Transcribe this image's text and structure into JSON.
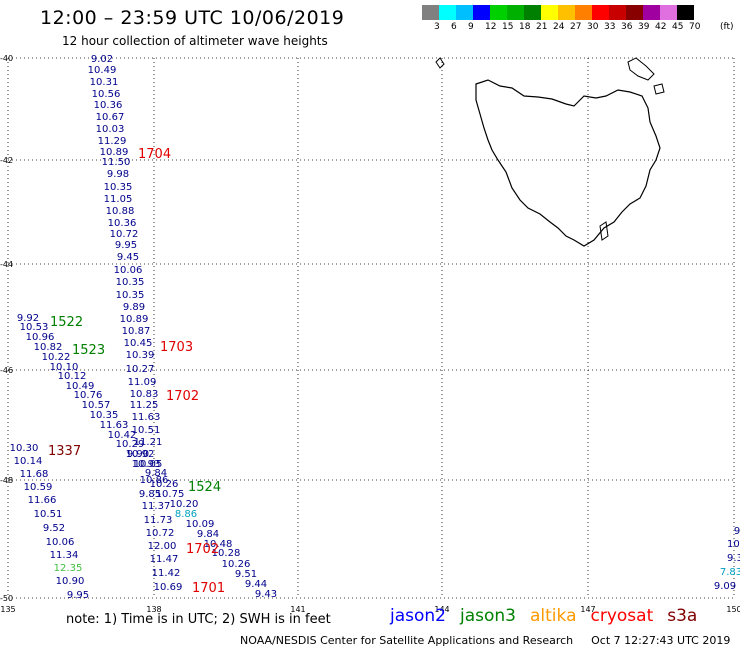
{
  "header": {
    "title": "12:00 – 23:59 UTC 10/06/2019",
    "subtitle": "12 hour collection of altimeter wave heights"
  },
  "legend": {
    "unit": "(ft)",
    "colors": [
      "#808080",
      "#00ffff",
      "#00bfff",
      "#0000ff",
      "#00d000",
      "#00b000",
      "#008000",
      "#ffff00",
      "#ffc000",
      "#ff8000",
      "#ff0000",
      "#c80000",
      "#880000",
      "#a000a0",
      "#e070e0",
      "#000000"
    ],
    "labels": [
      "3",
      "6",
      "9",
      "12",
      "15",
      "18",
      "21",
      "24",
      "27",
      "30",
      "33",
      "36",
      "39",
      "42",
      "45",
      "70"
    ]
  },
  "map": {
    "lat_labels": [
      "-40",
      "-42",
      "-44",
      "-46",
      "-48",
      "-50"
    ],
    "lon_labels": [
      "135",
      "138",
      "141",
      "144",
      "147",
      "150"
    ],
    "swh_values": [
      {
        "text": "9.02",
        "color": "#00008b"
      },
      {
        "text": "10.49",
        "color": "#00008b"
      },
      {
        "text": "10.31",
        "color": "#00008b"
      },
      {
        "text": "10.56",
        "color": "#00008b"
      },
      {
        "text": "10.36",
        "color": "#00008b"
      },
      {
        "text": "10.67",
        "color": "#00008b"
      },
      {
        "text": "10.03",
        "color": "#00008b"
      },
      {
        "text": "11.29",
        "color": "#00008b"
      },
      {
        "text": "10.89",
        "color": "#00008b"
      },
      {
        "text": "11.50",
        "color": "#00008b"
      },
      {
        "text": "9.98",
        "color": "#00008b"
      },
      {
        "text": "10.35",
        "color": "#00008b"
      },
      {
        "text": "11.05",
        "color": "#00008b"
      },
      {
        "text": "10.88",
        "color": "#00008b"
      },
      {
        "text": "10.36",
        "color": "#00008b"
      },
      {
        "text": "10.72",
        "color": "#00008b"
      },
      {
        "text": "9.95",
        "color": "#00008b"
      },
      {
        "text": "9.45",
        "color": "#00008b"
      },
      {
        "text": "10.06",
        "color": "#00008b"
      },
      {
        "text": "10.35",
        "color": "#00008b"
      },
      {
        "text": "10.35",
        "color": "#00008b"
      },
      {
        "text": "9.89",
        "color": "#00008b"
      },
      {
        "text": "10.89",
        "color": "#00008b"
      },
      {
        "text": "10.87",
        "color": "#00008b"
      },
      {
        "text": "10.45",
        "color": "#00008b"
      },
      {
        "text": "10.39",
        "color": "#00008b"
      },
      {
        "text": "10.27",
        "color": "#00008b"
      },
      {
        "text": "11.09",
        "color": "#00008b"
      },
      {
        "text": "10.83",
        "color": "#00008b"
      },
      {
        "text": "11.25",
        "color": "#00008b"
      },
      {
        "text": "11.63",
        "color": "#00008b"
      },
      {
        "text": "10.51",
        "color": "#00008b"
      },
      {
        "text": "11.21",
        "color": "#00008b"
      },
      {
        "text": "10.92",
        "color": "#00008b"
      },
      {
        "text": "10.05",
        "color": "#00008b"
      },
      {
        "text": "9.84",
        "color": "#00008b"
      },
      {
        "text": "10.26",
        "color": "#00008b"
      },
      {
        "text": "10.75",
        "color": "#00008b"
      },
      {
        "text": "10.20",
        "color": "#00008b"
      },
      {
        "text": "8.86",
        "color": "#00a0c0"
      },
      {
        "text": "10.09",
        "color": "#00008b"
      },
      {
        "text": "9.84",
        "color": "#00008b"
      },
      {
        "text": "10.48",
        "color": "#00008b"
      },
      {
        "text": "10.28",
        "color": "#00008b"
      },
      {
        "text": "10.26",
        "color": "#00008b"
      },
      {
        "text": "9.51",
        "color": "#00008b"
      },
      {
        "text": "9.44",
        "color": "#00008b"
      },
      {
        "text": "9.43",
        "color": "#00008b"
      },
      {
        "text": "11.37",
        "color": "#00008b"
      },
      {
        "text": "11.73",
        "color": "#00008b"
      },
      {
        "text": "10.72",
        "color": "#00008b"
      },
      {
        "text": "12.00",
        "color": "#00008b"
      },
      {
        "text": "11.47",
        "color": "#00008b"
      },
      {
        "text": "11.42",
        "color": "#00008b"
      },
      {
        "text": "10.69",
        "color": "#00008b"
      },
      {
        "text": "9.85",
        "color": "#00008b"
      },
      {
        "text": "9.92",
        "color": "#00008b"
      },
      {
        "text": "10.53",
        "color": "#00008b"
      },
      {
        "text": "10.96",
        "color": "#00008b"
      },
      {
        "text": "10.82",
        "color": "#00008b"
      },
      {
        "text": "10.22",
        "color": "#00008b"
      },
      {
        "text": "10.10",
        "color": "#00008b"
      },
      {
        "text": "10.12",
        "color": "#00008b"
      },
      {
        "text": "10.49",
        "color": "#00008b"
      },
      {
        "text": "10.76",
        "color": "#00008b"
      },
      {
        "text": "10.57",
        "color": "#00008b"
      },
      {
        "text": "10.35",
        "color": "#00008b"
      },
      {
        "text": "11.63",
        "color": "#00008b"
      },
      {
        "text": "10.42",
        "color": "#00008b"
      },
      {
        "text": "10.29",
        "color": "#00008b"
      },
      {
        "text": "9.90",
        "color": "#00008b"
      },
      {
        "text": "10.93",
        "color": "#00008b"
      },
      {
        "text": "10.86",
        "color": "#00008b"
      },
      {
        "text": "10.30",
        "color": "#00008b"
      },
      {
        "text": "10.14",
        "color": "#00008b"
      },
      {
        "text": "11.68",
        "color": "#00008b"
      },
      {
        "text": "10.59",
        "color": "#00008b"
      },
      {
        "text": "11.66",
        "color": "#00008b"
      },
      {
        "text": "10.51",
        "color": "#00008b"
      },
      {
        "text": "9.52",
        "color": "#00008b"
      },
      {
        "text": "10.06",
        "color": "#00008b"
      },
      {
        "text": "11.34",
        "color": "#00008b"
      },
      {
        "text": "12.35",
        "color": "#40c040"
      },
      {
        "text": "10.90",
        "color": "#00008b"
      },
      {
        "text": "9.95",
        "color": "#00008b"
      },
      {
        "text": "9",
        "color": "#00008b"
      },
      {
        "text": "10.",
        "color": "#00008b"
      },
      {
        "text": "9.3",
        "color": "#00008b"
      },
      {
        "text": "7.83",
        "color": "#00a0c0"
      },
      {
        "text": "9.09",
        "color": "#00008b"
      }
    ],
    "track_times": [
      {
        "text": "1704",
        "color": "#e00000"
      },
      {
        "text": "1703",
        "color": "#e00000"
      },
      {
        "text": "1702",
        "color": "#e00000"
      },
      {
        "text": "1702",
        "color": "#e00000"
      },
      {
        "text": "1701",
        "color": "#e00000"
      },
      {
        "text": "1522",
        "color": "#008000"
      },
      {
        "text": "1523",
        "color": "#008000"
      },
      {
        "text": "1524",
        "color": "#008000"
      },
      {
        "text": "1337",
        "color": "#800000"
      }
    ]
  },
  "footer": {
    "note": "note:  1) Time is in UTC;  2) SWH is in feet",
    "satellites": [
      {
        "name": "jason2",
        "color": "#0000ff"
      },
      {
        "name": "jason3",
        "color": "#008000"
      },
      {
        "name": "altika",
        "color": "#ff9900"
      },
      {
        "name": "cryosat",
        "color": "#ff0000"
      },
      {
        "name": "s3a",
        "color": "#800000"
      }
    ],
    "credit": "NOAA/NESDIS Center for Satellite Applications and Research",
    "timestamp": "Oct  7 12:27:43 UTC 2019"
  }
}
